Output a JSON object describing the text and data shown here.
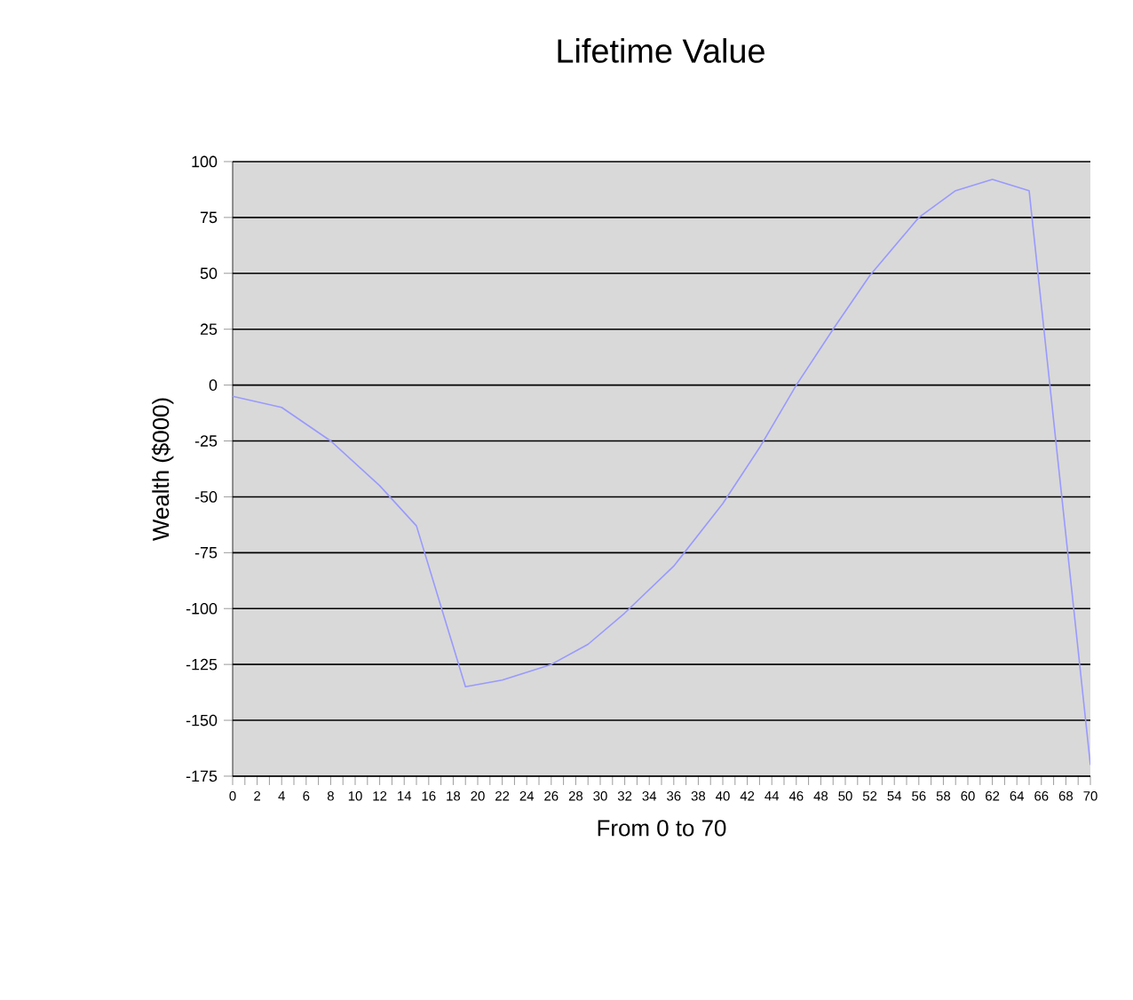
{
  "chart_data": {
    "type": "line",
    "title": "Lifetime Value",
    "xlabel": "From 0 to 70",
    "ylabel": "Wealth ($000)",
    "x": [
      0,
      4,
      8,
      12,
      15,
      19,
      22,
      26,
      29,
      32,
      36,
      40,
      43,
      46,
      49,
      52,
      56,
      59,
      62,
      65,
      70
    ],
    "values": [
      -5,
      -10,
      -25,
      -45,
      -63,
      -135,
      -132,
      -125,
      -116,
      -102,
      -81,
      -53,
      -28,
      0,
      25,
      49,
      75,
      87,
      92,
      87,
      -170
    ],
    "color": "#9999ff",
    "xlim": [
      0,
      70
    ],
    "xticks": [
      0,
      {
        "value": 1,
        "label": null
      },
      2,
      {
        "value": 3,
        "label": null
      },
      4,
      {
        "value": 5,
        "label": null
      },
      6,
      {
        "value": 7,
        "label": null
      },
      8,
      {
        "value": 9,
        "label": null
      },
      10,
      {
        "value": 11,
        "label": null
      },
      12,
      {
        "value": 13,
        "label": null
      },
      14,
      {
        "value": 15,
        "label": null
      },
      16,
      {
        "value": 17,
        "label": null
      },
      18,
      {
        "value": 19,
        "label": null
      },
      20,
      {
        "value": 21,
        "label": null
      },
      22,
      {
        "value": 23,
        "label": null
      },
      24,
      {
        "value": 25,
        "label": null
      },
      26,
      {
        "value": 27,
        "label": null
      },
      28,
      {
        "value": 29,
        "label": null
      },
      30,
      {
        "value": 31,
        "label": null
      },
      32,
      {
        "value": 33,
        "label": null
      },
      34,
      {
        "value": 35,
        "label": null
      },
      36,
      {
        "value": 37,
        "label": null
      },
      38,
      {
        "value": 39,
        "label": null
      },
      40,
      {
        "value": 41,
        "label": null
      },
      42,
      {
        "value": 43,
        "label": null
      },
      44,
      {
        "value": 45,
        "label": null
      },
      46,
      {
        "value": 47,
        "label": null
      },
      48,
      {
        "value": 49,
        "label": null
      },
      50,
      {
        "value": 51,
        "label": null
      },
      52,
      {
        "value": 53,
        "label": null
      },
      54,
      {
        "value": 55,
        "label": null
      },
      56,
      {
        "value": 57,
        "label": null
      },
      58,
      {
        "value": 59,
        "label": null
      },
      60,
      {
        "value": 61,
        "label": null
      },
      62,
      {
        "value": 63,
        "label": null
      },
      64,
      {
        "value": 65,
        "label": null
      },
      66,
      {
        "value": 67,
        "label": null
      },
      68,
      {
        "value": 69,
        "label": null
      },
      70
    ],
    "ylim": [
      -175,
      100
    ],
    "yticks": [
      -175,
      -150,
      -125,
      -100,
      -75,
      -50,
      -25,
      0,
      25,
      50,
      75,
      100
    ],
    "grid": "y",
    "marker": "none",
    "line_style": "solid"
  }
}
